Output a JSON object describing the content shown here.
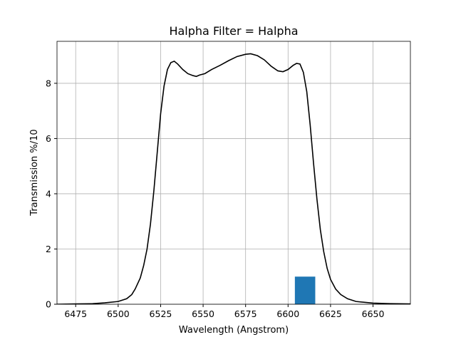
{
  "chart_data": {
    "type": "line",
    "title": "Halpha Filter = Halpha",
    "xlabel": "Wavelength (Angstrom)",
    "ylabel": "Transmission %/10",
    "xlim": [
      6464,
      6672
    ],
    "ylim": [
      0,
      9.52
    ],
    "xticks": [
      6475,
      6500,
      6525,
      6550,
      6575,
      6600,
      6625,
      6650
    ],
    "yticks": [
      0,
      2,
      4,
      6,
      8
    ],
    "grid": true,
    "series": [
      {
        "type": "line",
        "color": "#000000",
        "x": [
          6464,
          6475,
          6485,
          6492,
          6500,
          6505,
          6508,
          6510,
          6513,
          6515,
          6517,
          6519,
          6521,
          6523,
          6525,
          6527,
          6529,
          6531,
          6533,
          6535,
          6538,
          6541,
          6544,
          6546,
          6548,
          6551,
          6555,
          6560,
          6565,
          6570,
          6575,
          6578,
          6582,
          6586,
          6590,
          6594,
          6597,
          6600,
          6603,
          6605,
          6607,
          6609,
          6611,
          6613,
          6615,
          6617,
          6619,
          6621,
          6623,
          6625,
          6628,
          6631,
          6635,
          6640,
          6650,
          6660,
          6672
        ],
        "values": [
          0,
          0.01,
          0.02,
          0.05,
          0.1,
          0.2,
          0.35,
          0.55,
          0.95,
          1.4,
          2.0,
          2.9,
          4.1,
          5.5,
          6.9,
          7.9,
          8.5,
          8.75,
          8.8,
          8.7,
          8.5,
          8.35,
          8.28,
          8.25,
          8.3,
          8.35,
          8.5,
          8.65,
          8.82,
          8.97,
          9.05,
          9.07,
          9.0,
          8.85,
          8.62,
          8.45,
          8.42,
          8.5,
          8.65,
          8.72,
          8.7,
          8.4,
          7.7,
          6.5,
          5.1,
          3.8,
          2.7,
          1.9,
          1.3,
          0.9,
          0.55,
          0.35,
          0.2,
          0.1,
          0.04,
          0.02,
          0.01
        ]
      },
      {
        "type": "bar",
        "color": "#1f77b4",
        "x": [
          6610
        ],
        "width": 12,
        "values": [
          1
        ]
      }
    ]
  }
}
